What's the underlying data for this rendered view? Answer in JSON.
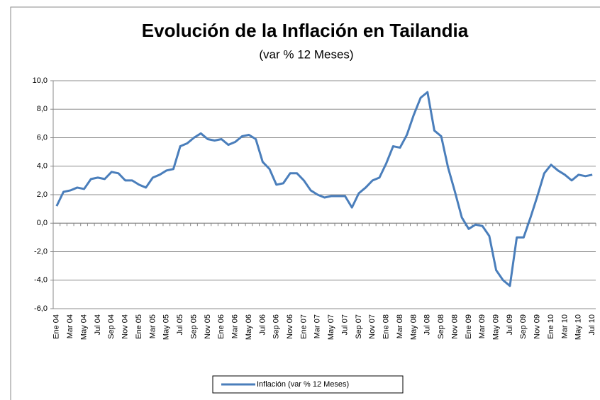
{
  "chart_data": {
    "type": "line",
    "title": "Evolución de la Inflación en Tailandia",
    "subtitle": "(var % 12 Meses)",
    "categories": [
      "Ene 04",
      null,
      "Mar 04",
      null,
      "May 04",
      null,
      "Jul 04",
      null,
      "Sep 04",
      null,
      "Nov 04",
      null,
      "Ene 05",
      null,
      "Mar 05",
      null,
      "May 05",
      null,
      "Jul 05",
      null,
      "Sep 05",
      null,
      "Nov 05",
      null,
      "Ene 06",
      null,
      "Mar 06",
      null,
      "May 06",
      null,
      "Jul 06",
      null,
      "Sep 06",
      null,
      "Nov 06",
      null,
      "Ene 07",
      null,
      "Mar 07",
      null,
      "May 07",
      null,
      "Jul 07",
      null,
      "Sep 07",
      null,
      "Nov 07",
      null,
      "Ene 08",
      null,
      "Mar 08",
      null,
      "May 08",
      null,
      "Jul 08",
      null,
      "Sep 08",
      null,
      "Nov 08",
      null,
      "Ene 09",
      null,
      "Mar 09",
      null,
      "May 09",
      null,
      "Jul 09",
      null,
      "Sep 09",
      null,
      "Nov 09",
      null,
      "Ene 10",
      null,
      "Mar 10",
      null,
      "May 10",
      null,
      "Jul 10"
    ],
    "series": [
      {
        "name": "Inflación (var % 12 Meses)",
        "color": "#4a7ebb",
        "values": [
          1.2,
          2.2,
          2.3,
          2.5,
          2.4,
          3.1,
          3.2,
          3.1,
          3.6,
          3.5,
          3.0,
          3.0,
          2.7,
          2.5,
          3.2,
          3.4,
          3.7,
          3.8,
          5.4,
          5.6,
          6.0,
          6.3,
          5.9,
          5.8,
          5.9,
          5.5,
          5.7,
          6.1,
          6.2,
          5.9,
          4.3,
          3.8,
          2.7,
          2.8,
          3.5,
          3.5,
          3.0,
          2.3,
          2.0,
          1.8,
          1.9,
          1.9,
          1.9,
          1.1,
          2.1,
          2.5,
          3.0,
          3.2,
          4.2,
          5.4,
          5.3,
          6.2,
          7.6,
          8.8,
          9.2,
          6.5,
          6.1,
          3.9,
          2.2,
          0.4,
          -0.4,
          -0.1,
          -0.2,
          -0.9,
          -3.3,
          -4.0,
          -4.4,
          -1.0,
          -1.0,
          0.4,
          1.9,
          3.5,
          4.1,
          3.7,
          3.4,
          3.0,
          3.4,
          3.3,
          3.4
        ]
      }
    ],
    "ylim": [
      -6,
      10
    ],
    "yticks": [
      {
        "value": -6,
        "label": "-6,0"
      },
      {
        "value": -4,
        "label": "-4,0"
      },
      {
        "value": -2,
        "label": "-2,0"
      },
      {
        "value": 0,
        "label": "0,0"
      },
      {
        "value": 2,
        "label": "2,0"
      },
      {
        "value": 4,
        "label": "4,0"
      },
      {
        "value": 6,
        "label": "6,0"
      },
      {
        "value": 8,
        "label": "8,0"
      },
      {
        "value": 10,
        "label": "10,0"
      }
    ],
    "grid": true,
    "legend": "bottom"
  }
}
